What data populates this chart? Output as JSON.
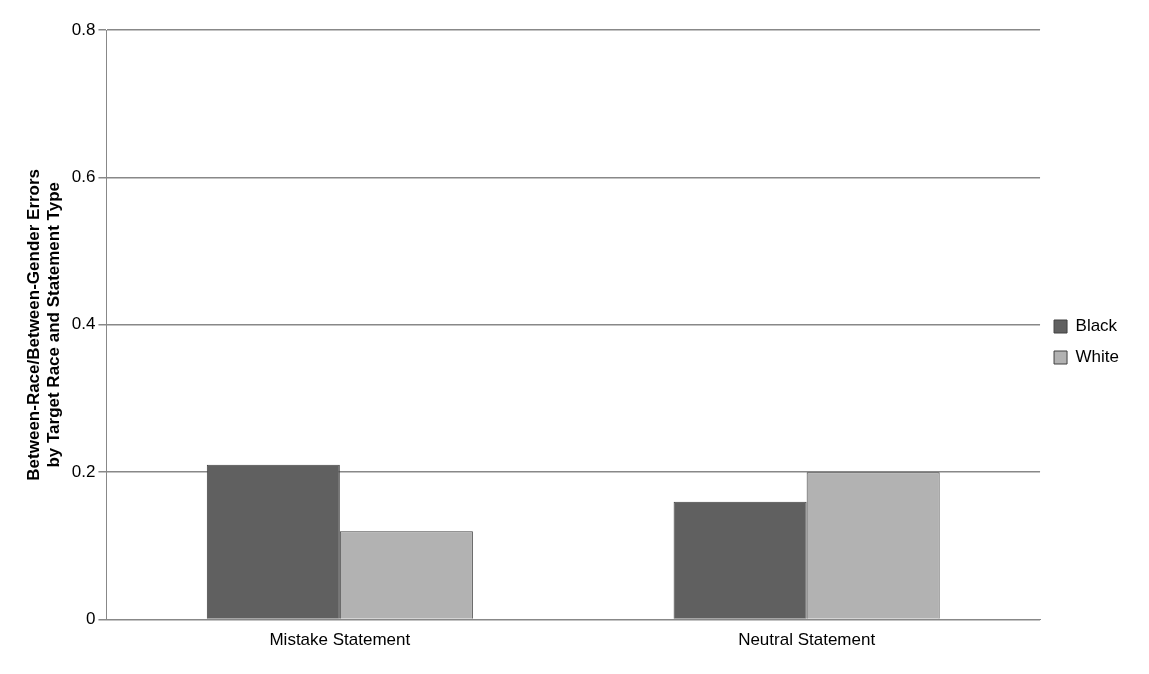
{
  "chart_data": {
    "type": "bar",
    "ylabel": "Between-Race/Between-Gender Errors by Target Race and Statement Type",
    "categories": [
      "Mistake Statement",
      "Neutral Statement"
    ],
    "series": [
      {
        "name": "Black",
        "color": "#606060",
        "values": [
          0.21,
          0.16
        ]
      },
      {
        "name": "White",
        "color": "#b2b2b2",
        "values": [
          0.12,
          0.2
        ]
      }
    ],
    "ylim": [
      0,
      0.8
    ],
    "yticks": [
      0,
      0.2,
      0.4,
      0.6,
      0.8
    ],
    "grid": "y",
    "legend": "right"
  }
}
